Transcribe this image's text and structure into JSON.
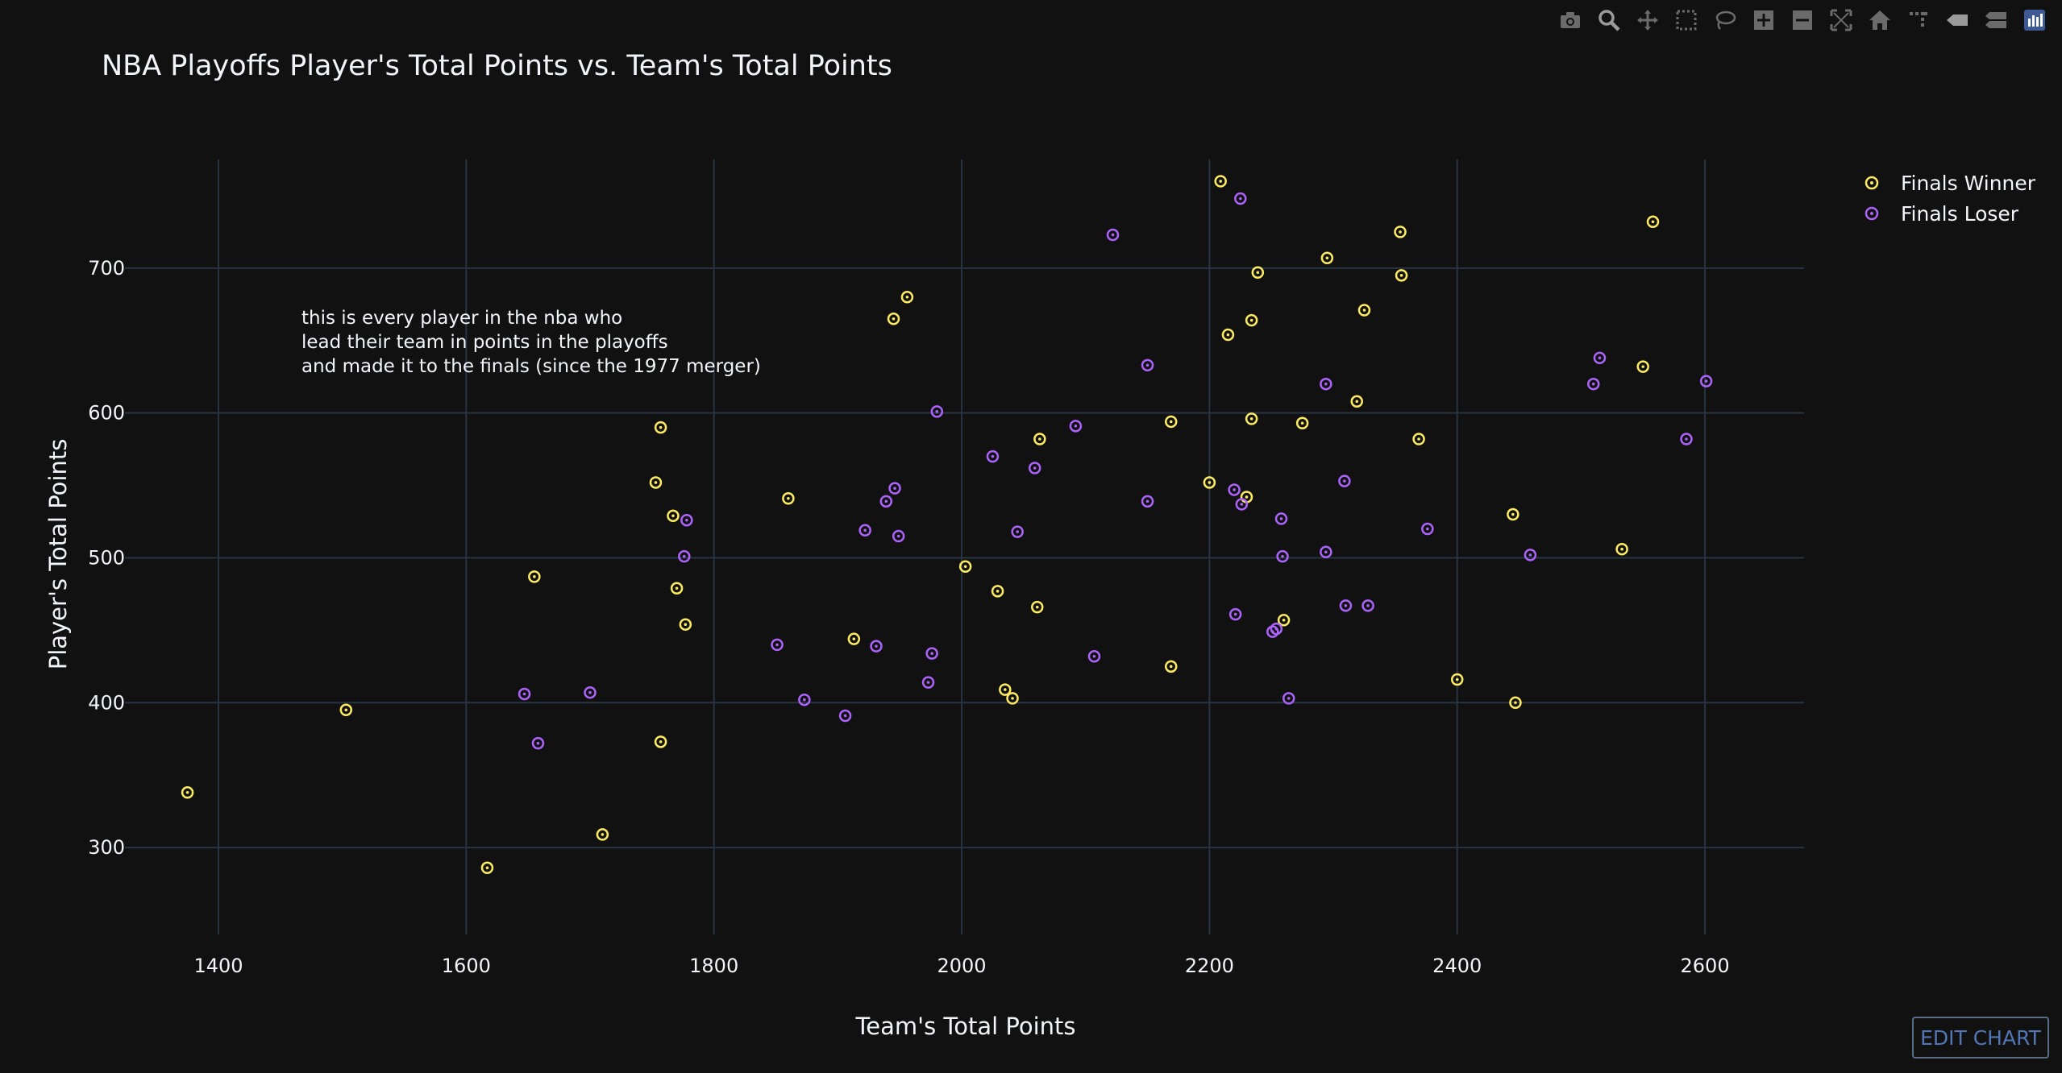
{
  "toolbar": {
    "icons": [
      "camera-icon",
      "zoom-icon",
      "pan-icon",
      "box-select-icon",
      "lasso-select-icon",
      "zoom-in-icon",
      "zoom-out-icon",
      "autoscale-icon",
      "reset-axes-icon",
      "spike-lines-icon",
      "hover-closest-icon",
      "hover-compare-icon",
      "plotly-logo-icon"
    ]
  },
  "edit_button": {
    "label": "EDIT CHART"
  },
  "colors": {
    "background": "#111111",
    "grid": "#283442",
    "winner": "#fcea61",
    "loser": "#ab63fa",
    "text": "#f2f5fa"
  },
  "chart_data": {
    "type": "scatter",
    "title": "NBA Playoffs Player's Total Points vs. Team's Total Points",
    "xlabel": "Team's Total Points",
    "ylabel": "Player's Total Points",
    "xlim": [
      1305,
      2680
    ],
    "ylim": [
      240,
      785
    ],
    "xticks": [
      1400,
      1600,
      1800,
      2000,
      2200,
      2400,
      2600
    ],
    "yticks": [
      300,
      400,
      500,
      600,
      700
    ],
    "grid": true,
    "legend_position": "top-right",
    "annotation_lines": [
      "this is every player in the nba who",
      "lead their team in points in the playoffs",
      " and made it to the finals (since the 1977 merger)"
    ],
    "series": [
      {
        "name": "Finals Winner",
        "color": "#fcea61",
        "points": [
          [
            1375,
            338
          ],
          [
            1503,
            395
          ],
          [
            1617,
            286
          ],
          [
            1655,
            487
          ],
          [
            1710,
            309
          ],
          [
            1753,
            552
          ],
          [
            1757,
            590
          ],
          [
            1757,
            373
          ],
          [
            1767,
            529
          ],
          [
            1770,
            479
          ],
          [
            1777,
            454
          ],
          [
            1860,
            541
          ],
          [
            1913,
            444
          ],
          [
            1945,
            665
          ],
          [
            1956,
            680
          ],
          [
            2003,
            494
          ],
          [
            2029,
            477
          ],
          [
            2035,
            409
          ],
          [
            2041,
            403
          ],
          [
            2061,
            466
          ],
          [
            2063,
            582
          ],
          [
            2169,
            594
          ],
          [
            2169,
            425
          ],
          [
            2200,
            552
          ],
          [
            2209,
            760
          ],
          [
            2215,
            654
          ],
          [
            2230,
            542
          ],
          [
            2234,
            596
          ],
          [
            2234,
            664
          ],
          [
            2239,
            697
          ],
          [
            2260,
            457
          ],
          [
            2275,
            593
          ],
          [
            2295,
            707
          ],
          [
            2319,
            608
          ],
          [
            2325,
            671
          ],
          [
            2354,
            725
          ],
          [
            2355,
            695
          ],
          [
            2369,
            582
          ],
          [
            2400,
            416
          ],
          [
            2445,
            530
          ],
          [
            2447,
            400
          ],
          [
            2533,
            506
          ],
          [
            2550,
            632
          ],
          [
            2558,
            732
          ]
        ]
      },
      {
        "name": "Finals Loser",
        "color": "#ab63fa",
        "points": [
          [
            1647,
            406
          ],
          [
            1658,
            372
          ],
          [
            1700,
            407
          ],
          [
            1776,
            501
          ],
          [
            1778,
            526
          ],
          [
            1851,
            440
          ],
          [
            1873,
            402
          ],
          [
            1906,
            391
          ],
          [
            1922,
            519
          ],
          [
            1931,
            439
          ],
          [
            1939,
            539
          ],
          [
            1946,
            548
          ],
          [
            1949,
            515
          ],
          [
            1973,
            414
          ],
          [
            1976,
            434
          ],
          [
            1980,
            601
          ],
          [
            2025,
            570
          ],
          [
            2045,
            518
          ],
          [
            2059,
            562
          ],
          [
            2092,
            591
          ],
          [
            2107,
            432
          ],
          [
            2122,
            723
          ],
          [
            2150,
            539
          ],
          [
            2150,
            633
          ],
          [
            2220,
            547
          ],
          [
            2221,
            461
          ],
          [
            2226,
            537
          ],
          [
            2225,
            748
          ],
          [
            2251,
            449
          ],
          [
            2254,
            451
          ],
          [
            2258,
            527
          ],
          [
            2259,
            501
          ],
          [
            2264,
            403
          ],
          [
            2294,
            620
          ],
          [
            2294,
            504
          ],
          [
            2309,
            553
          ],
          [
            2310,
            467
          ],
          [
            2328,
            467
          ],
          [
            2376,
            520
          ],
          [
            2459,
            502
          ],
          [
            2510,
            620
          ],
          [
            2515,
            638
          ],
          [
            2585,
            582
          ],
          [
            2601,
            622
          ]
        ]
      }
    ]
  }
}
